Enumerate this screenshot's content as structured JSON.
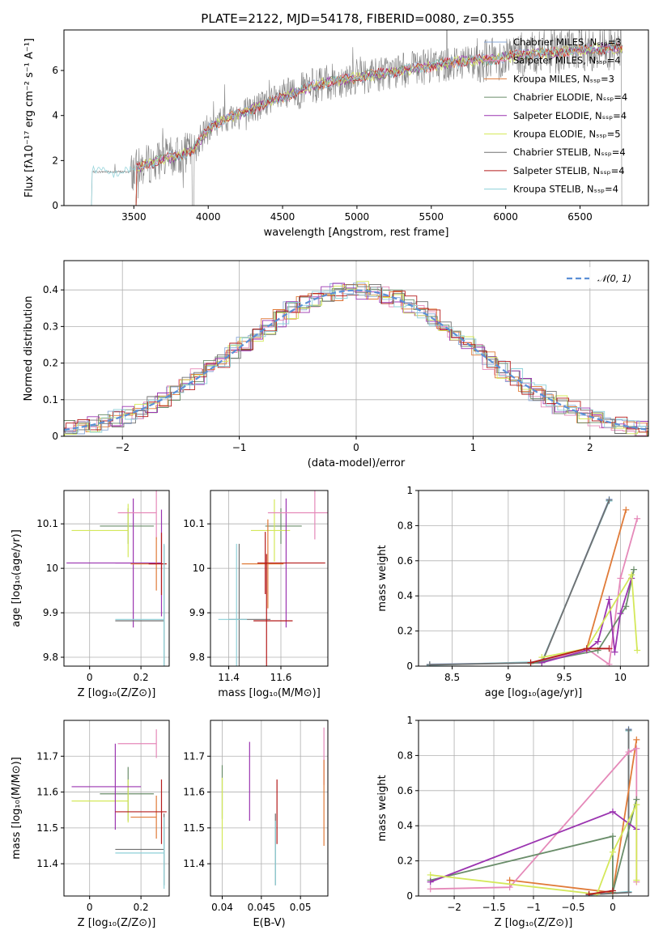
{
  "colors": [
    "#8aa8d8",
    "#e589b9",
    "#e07b39",
    "#6a8d6a",
    "#9b34b0",
    "#d4e85a",
    "#707070",
    "#b51c1c",
    "#8dd0d8"
  ],
  "chart_data": [
    {
      "type": "line",
      "title": "PLATE=2122, MJD=54178, FIBERID=0080, z=0.355",
      "xlabel": "wavelength [Angstrom, rest frame]",
      "ylabel": "Flux [fλ10⁻¹⁷ erg cm⁻² s⁻¹ A⁻¹]",
      "xlim": [
        3030,
        6960
      ],
      "ylim": [
        0,
        7.8
      ],
      "xticks": [
        3500,
        4000,
        4500,
        5000,
        5500,
        6000,
        6500
      ],
      "yticks": [
        0,
        2,
        4,
        6
      ],
      "legend_position": "top-right",
      "legend": [
        "Chabrier MILES, Nₛₛₚ=3",
        "Salpeter MILES, Nₛₛₚ=4",
        "Kroupa MILES, Nₛₛₚ=3",
        "Chabrier ELODIE, Nₛₛₚ=4",
        "Salpeter ELODIE, Nₛₛₚ=4",
        "Kroupa ELODIE, Nₛₛₚ=5",
        "Chabrier STELIB, Nₛₛₚ=4",
        "Salpeter STELIB, Nₛₛₚ=4",
        "Kroupa STELIB, Nₛₛₚ=4"
      ],
      "continuum_model": {
        "x": [
          3220,
          3350,
          3480,
          3560,
          3700,
          3800,
          3900,
          4000,
          4100,
          4300,
          4500,
          4700,
          4900,
          5100,
          5300,
          5500,
          5700,
          5900,
          6100,
          6300,
          6500,
          6700,
          6790
        ],
        "y": [
          1.5,
          1.5,
          1.5,
          1.75,
          2.1,
          2.2,
          2.5,
          3.4,
          3.8,
          4.3,
          4.8,
          5.3,
          5.6,
          5.8,
          6.0,
          6.2,
          6.4,
          6.5,
          6.7,
          6.8,
          6.9,
          7.0,
          7.0
        ]
      }
    },
    {
      "type": "step",
      "xlabel": "(data-model)/error",
      "ylabel": "Normed distribution",
      "xlim": [
        -2.5,
        2.5
      ],
      "ylim": [
        0,
        0.48
      ],
      "xticks": [
        -2,
        -1,
        0,
        1,
        2
      ],
      "yticks": [
        0.0,
        0.1,
        0.2,
        0.3,
        0.4
      ],
      "grid": true,
      "legend_position": "top-right",
      "legend": [
        "𝒩(0, 1)"
      ]
    },
    {
      "type": "scatter",
      "xlabel": "Z [log₁₀(Z/Z⊙)]",
      "ylabel": "age  [log₁₀(age/yr)]",
      "xlim": [
        -0.1,
        0.31
      ],
      "ylim": [
        9.78,
        10.175
      ],
      "xticks": [
        0.0,
        0.2
      ],
      "yticks": [
        9.8,
        9.9,
        10.0,
        10.1
      ],
      "grid": true,
      "points": [
        {
          "x": 0.15,
          "y": 10.095,
          "xerr": [
            0.11,
            0.1
          ],
          "yerr": 0.04,
          "c": 3
        },
        {
          "x": 0.15,
          "y": 10.085,
          "xerr": [
            0.22,
            0.0
          ],
          "yerr": 0.06,
          "c": 5
        },
        {
          "x": 0.17,
          "y": 10.012,
          "xerr": [
            0.07,
            0.0
          ],
          "yerr": 0.145,
          "c": 4
        },
        {
          "x": 0.28,
          "y": 10.012,
          "xerr": [
            0.37,
            0.0
          ],
          "yerr": 0.12,
          "c": 4
        },
        {
          "x": 0.26,
          "y": 10.125,
          "xerr": [
            0.15,
            0.0
          ],
          "yerr": 0.06,
          "c": 1
        },
        {
          "x": 0.26,
          "y": 10.01,
          "xerr": [
            0.1,
            0.0
          ],
          "yerr": 0.06,
          "c": 2
        },
        {
          "x": 0.28,
          "y": 10.01,
          "xerr": [
            0.05,
            0.02
          ],
          "yerr": 0.07,
          "c": 7
        },
        {
          "x": 0.29,
          "y": 9.882,
          "xerr": [
            0.19,
            0.0
          ],
          "yerr": 0.17,
          "c": 6
        },
        {
          "x": 0.29,
          "y": 9.885,
          "xerr": [
            0.19,
            0.0
          ],
          "yerr": 0.17,
          "c": 8
        }
      ]
    },
    {
      "type": "scatter",
      "xlabel": "mass [log₁₀(M/M⊙)]",
      "ylabel": "",
      "xlim": [
        11.33,
        11.78
      ],
      "ylim": [
        9.78,
        10.175
      ],
      "xticks": [
        11.4,
        11.6
      ],
      "yticks": [
        9.8,
        9.9,
        10.0,
        10.1
      ],
      "grid": true,
      "points": [
        {
          "x": 11.6,
          "y": 10.095,
          "xerr": [
            0.06,
            0.08
          ],
          "yerr": 0.04,
          "c": 3
        },
        {
          "x": 11.575,
          "y": 10.085,
          "xerr": [
            0.09,
            0.06
          ],
          "yerr": 0.07,
          "c": 5
        },
        {
          "x": 11.62,
          "y": 10.012,
          "xerr": [
            0.11,
            0.0
          ],
          "yerr": 0.145,
          "c": 4
        },
        {
          "x": 11.73,
          "y": 10.125,
          "xerr": [
            0.18,
            0.05
          ],
          "yerr": 0.06,
          "c": 1
        },
        {
          "x": 11.55,
          "y": 10.01,
          "xerr": [
            0.1,
            0.06
          ],
          "yerr": 0.1,
          "c": 2
        },
        {
          "x": 11.54,
          "y": 10.012,
          "xerr": [
            0.03,
            0.23
          ],
          "yerr": 0.07,
          "c": 7
        },
        {
          "x": 11.44,
          "y": 9.885,
          "xerr": [
            0.04,
            0.12
          ],
          "yerr": 0.17,
          "c": 6
        },
        {
          "x": 11.43,
          "y": 9.885,
          "xerr": [
            0.07,
            0.04
          ],
          "yerr": 0.17,
          "c": 8
        },
        {
          "x": 11.545,
          "y": 9.882,
          "xerr": [
            0.05,
            0.1
          ],
          "yerr": 0.15,
          "c": 7
        }
      ]
    },
    {
      "type": "line",
      "xlabel": "age  [log₁₀(age/yr)]",
      "ylabel": "mass weight",
      "xlim": [
        8.2,
        10.25
      ],
      "ylim": [
        0,
        1.0
      ],
      "xticks": [
        8.5,
        9.0,
        9.5,
        10.0
      ],
      "yticks": [
        0.0,
        0.2,
        0.4,
        0.6,
        0.8,
        1.0
      ],
      "grid": true,
      "series": [
        {
          "c": 0,
          "x": [
            8.3,
            9.3,
            9.9
          ],
          "y": [
            0.01,
            0.02,
            0.95
          ]
        },
        {
          "c": 8,
          "x": [
            8.3,
            9.3,
            9.9
          ],
          "y": [
            0.005,
            0.025,
            0.94
          ]
        },
        {
          "c": 6,
          "x": [
            8.3,
            9.3,
            9.9
          ],
          "y": [
            0.008,
            0.02,
            0.945
          ]
        },
        {
          "c": 2,
          "x": [
            9.3,
            9.7,
            10.05
          ],
          "y": [
            0.03,
            0.1,
            0.89
          ]
        },
        {
          "c": 1,
          "x": [
            9.3,
            9.7,
            9.9,
            10.0,
            10.15
          ],
          "y": [
            0.03,
            0.1,
            0.01,
            0.5,
            0.84
          ]
        },
        {
          "c": 3,
          "x": [
            9.2,
            9.8,
            10.05,
            10.12
          ],
          "y": [
            0.015,
            0.09,
            0.34,
            0.55
          ]
        },
        {
          "c": 4,
          "x": [
            9.3,
            9.7,
            9.8,
            9.9,
            9.95,
            10.0,
            10.1
          ],
          "y": [
            0.02,
            0.09,
            0.14,
            0.38,
            0.08,
            0.3,
            0.5
          ]
        },
        {
          "c": 5,
          "x": [
            9.3,
            9.7,
            10.1,
            10.15
          ],
          "y": [
            0.05,
            0.1,
            0.52,
            0.09
          ]
        },
        {
          "c": 7,
          "x": [
            9.2,
            9.7,
            9.9
          ],
          "y": [
            0.02,
            0.1,
            0.1
          ]
        }
      ]
    },
    {
      "type": "scatter",
      "xlabel": "Z [log₁₀(Z/Z⊙)]",
      "ylabel": "mass [log₁₀(M/M⊙)]",
      "xlim": [
        -0.1,
        0.31
      ],
      "ylim": [
        11.31,
        11.8
      ],
      "xticks": [
        0.0,
        0.2
      ],
      "yticks": [
        11.4,
        11.5,
        11.6,
        11.7
      ],
      "grid": true,
      "points": [
        {
          "x": 0.15,
          "y": 11.595,
          "xerr": [
            0.11,
            0.1
          ],
          "yerr": 0.075,
          "c": 3
        },
        {
          "x": 0.15,
          "y": 11.575,
          "xerr": [
            0.22,
            0.0
          ],
          "yerr": 0.06,
          "c": 5
        },
        {
          "x": 0.1,
          "y": 11.615,
          "xerr": [
            0.17,
            0.1
          ],
          "yerr": 0.12,
          "c": 4
        },
        {
          "x": 0.26,
          "y": 11.735,
          "xerr": [
            0.15,
            0.0
          ],
          "yerr": 0.04,
          "c": 1
        },
        {
          "x": 0.26,
          "y": 11.53,
          "xerr": [
            0.1,
            0.0
          ],
          "yerr": 0.06,
          "c": 2
        },
        {
          "x": 0.28,
          "y": 11.545,
          "xerr": [
            0.18,
            0.02
          ],
          "yerr": 0.09,
          "c": 7
        },
        {
          "x": 0.29,
          "y": 11.44,
          "xerr": [
            0.19,
            0.0
          ],
          "yerr": 0.1,
          "c": 6
        },
        {
          "x": 0.29,
          "y": 11.43,
          "xerr": [
            0.19,
            0.0
          ],
          "yerr": 0.1,
          "c": 8
        }
      ]
    },
    {
      "type": "scatter",
      "xlabel": "E(B-V)",
      "ylabel": "",
      "xlim": [
        0.0385,
        0.0535
      ],
      "ylim": [
        11.31,
        11.8
      ],
      "xticks": [
        0.04,
        0.045,
        0.05
      ],
      "yticks": [
        11.4,
        11.5,
        11.6,
        11.7
      ],
      "grid": true,
      "points": [
        {
          "x": 0.04,
          "y": 11.6,
          "yerr": 0.075,
          "c": 3
        },
        {
          "x": 0.04,
          "y": 11.54,
          "yerr": 0.1,
          "c": 5
        },
        {
          "x": 0.0435,
          "y": 11.63,
          "yerr": 0.11,
          "c": 4
        },
        {
          "x": 0.047,
          "y": 11.545,
          "yerr": 0.09,
          "c": 7
        },
        {
          "x": 0.0468,
          "y": 11.44,
          "yerr": 0.1,
          "c": 6
        },
        {
          "x": 0.0468,
          "y": 11.43,
          "yerr": 0.09,
          "c": 8
        },
        {
          "x": 0.053,
          "y": 11.7,
          "yerr": 0.08,
          "c": 1
        },
        {
          "x": 0.053,
          "y": 11.57,
          "yerr": 0.12,
          "c": 2
        }
      ]
    },
    {
      "type": "line",
      "xlabel": "Z [log₁₀(Z/Z⊙)]",
      "ylabel": "mass weight",
      "xlim": [
        -2.45,
        0.45
      ],
      "ylim": [
        0,
        1.0
      ],
      "xticks": [
        -2.0,
        -1.5,
        -1.0,
        -0.5,
        0.0
      ],
      "yticks": [
        0.0,
        0.2,
        0.4,
        0.6,
        0.8,
        1.0
      ],
      "grid": true,
      "series": [
        {
          "c": 0,
          "x": [
            -0.3,
            0.2,
            0.2
          ],
          "y": [
            0.01,
            0.02,
            0.95
          ]
        },
        {
          "c": 8,
          "x": [
            -0.3,
            0.2,
            0.2
          ],
          "y": [
            0.005,
            0.025,
            0.94
          ]
        },
        {
          "c": 6,
          "x": [
            -0.3,
            0.2,
            0.2
          ],
          "y": [
            0.008,
            0.02,
            0.945
          ]
        },
        {
          "c": 2,
          "x": [
            -1.3,
            0.0,
            0.3
          ],
          "y": [
            0.09,
            0.02,
            0.89
          ]
        },
        {
          "c": 1,
          "x": [
            -2.3,
            -1.3,
            0.2,
            0.3,
            0.3
          ],
          "y": [
            0.04,
            0.05,
            0.82,
            0.84,
            0.08
          ]
        },
        {
          "c": 3,
          "x": [
            -2.3,
            0.0,
            0.0,
            0.3
          ],
          "y": [
            0.09,
            0.34,
            0.02,
            0.55
          ]
        },
        {
          "c": 4,
          "x": [
            -2.3,
            0.0,
            0.3
          ],
          "y": [
            0.08,
            0.48,
            0.38
          ]
        },
        {
          "c": 5,
          "x": [
            -2.3,
            -0.2,
            0.0,
            0.3,
            0.3
          ],
          "y": [
            0.12,
            0.01,
            0.25,
            0.52,
            0.09
          ]
        },
        {
          "c": 7,
          "x": [
            -0.3,
            0.0
          ],
          "y": [
            0.01,
            0.03
          ]
        }
      ]
    }
  ]
}
